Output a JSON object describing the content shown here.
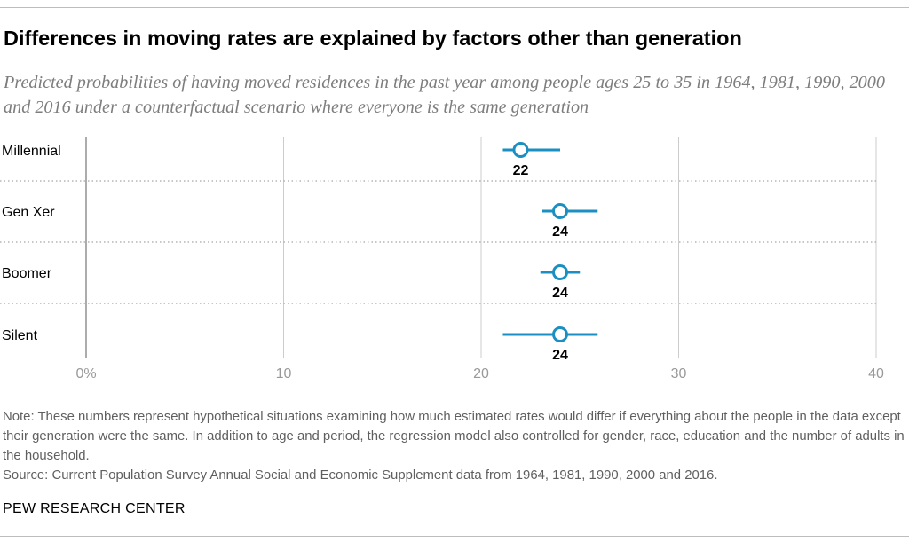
{
  "title": "Differences in moving rates are explained by factors other than generation",
  "subtitle": "Predicted probabilities of having moved residences in the past year among people ages 25 to 35 in 1964, 1981, 1990, 2000 and 2016 under a counterfactual scenario where everyone is the same generation",
  "note": "Note: These numbers represent hypothetical situations examining how much estimated rates would differ if everything about the people in the data except their generation were the same. In addition to age and period, the regression model also controlled for gender, race, education and the number of adults in the household.",
  "source": "Source: Current Population Survey Annual Social and Economic Supplement data from 1964, 1981, 1990, 2000 and 2016.",
  "credit": "PEW RESEARCH CENTER",
  "colors": {
    "accent": "#1b8fc2",
    "label": "#000000",
    "tick": "#999999",
    "grid": "#cccccc",
    "separator": "#a6a6a6"
  },
  "chart_data": {
    "type": "scatter",
    "categories": [
      "Millennial",
      "Gen Xer",
      "Boomer",
      "Silent"
    ],
    "values": [
      22,
      24,
      24,
      24
    ],
    "value_labels": [
      "22",
      "24",
      "24",
      "24"
    ],
    "ci_low": [
      21.1,
      23.1,
      23.0,
      21.1
    ],
    "ci_high": [
      24.0,
      25.9,
      25.0,
      25.9
    ],
    "xlim": [
      0,
      40
    ],
    "xticks": [
      0,
      10,
      20,
      30,
      40
    ],
    "xtick_labels": [
      "0%",
      "10",
      "20",
      "30",
      "40"
    ],
    "grid": true,
    "xlabel": "",
    "ylabel": ""
  }
}
